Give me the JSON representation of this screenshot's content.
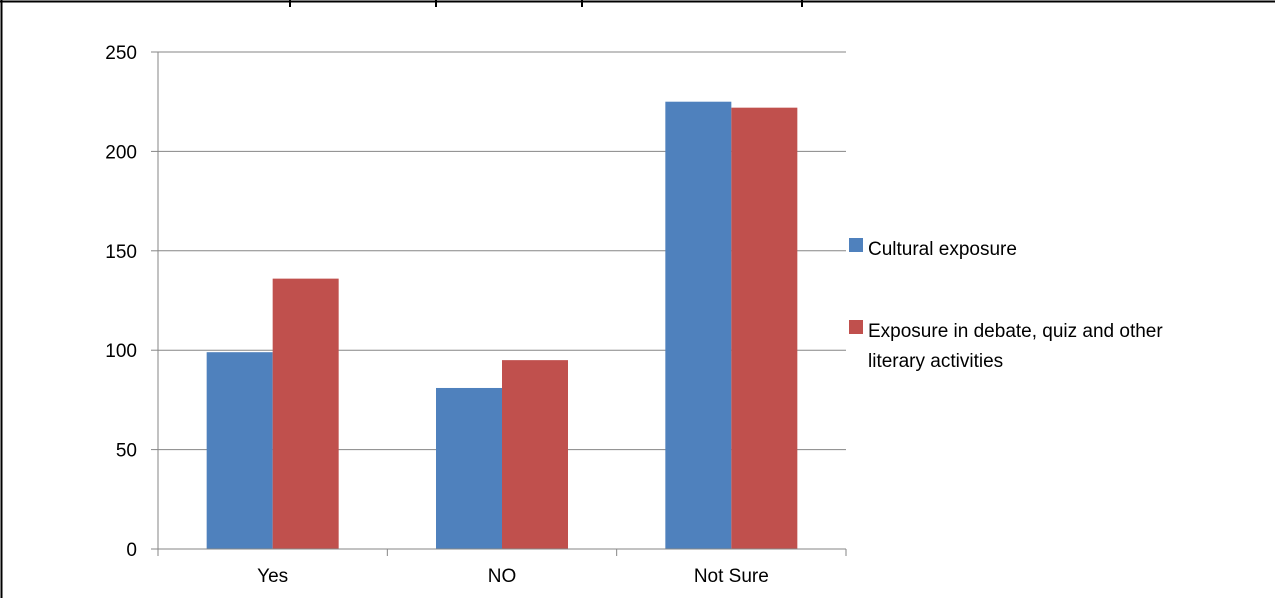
{
  "chart_data": {
    "type": "bar",
    "categories": [
      "Yes",
      "NO",
      "Not Sure"
    ],
    "series": [
      {
        "name": "Cultural exposure",
        "values": [
          99,
          81,
          225
        ],
        "color": "#4f81bd"
      },
      {
        "name": "Exposure in debate, quiz and other literary activities",
        "values": [
          136,
          95,
          222
        ],
        "color": "#c0504d"
      }
    ],
    "ylim": [
      0,
      250
    ],
    "yticks": [
      "0",
      "50",
      "100",
      "150",
      "200",
      "250"
    ],
    "grid": true,
    "legend_position": "right",
    "title": "",
    "xlabel": "",
    "ylabel": ""
  }
}
